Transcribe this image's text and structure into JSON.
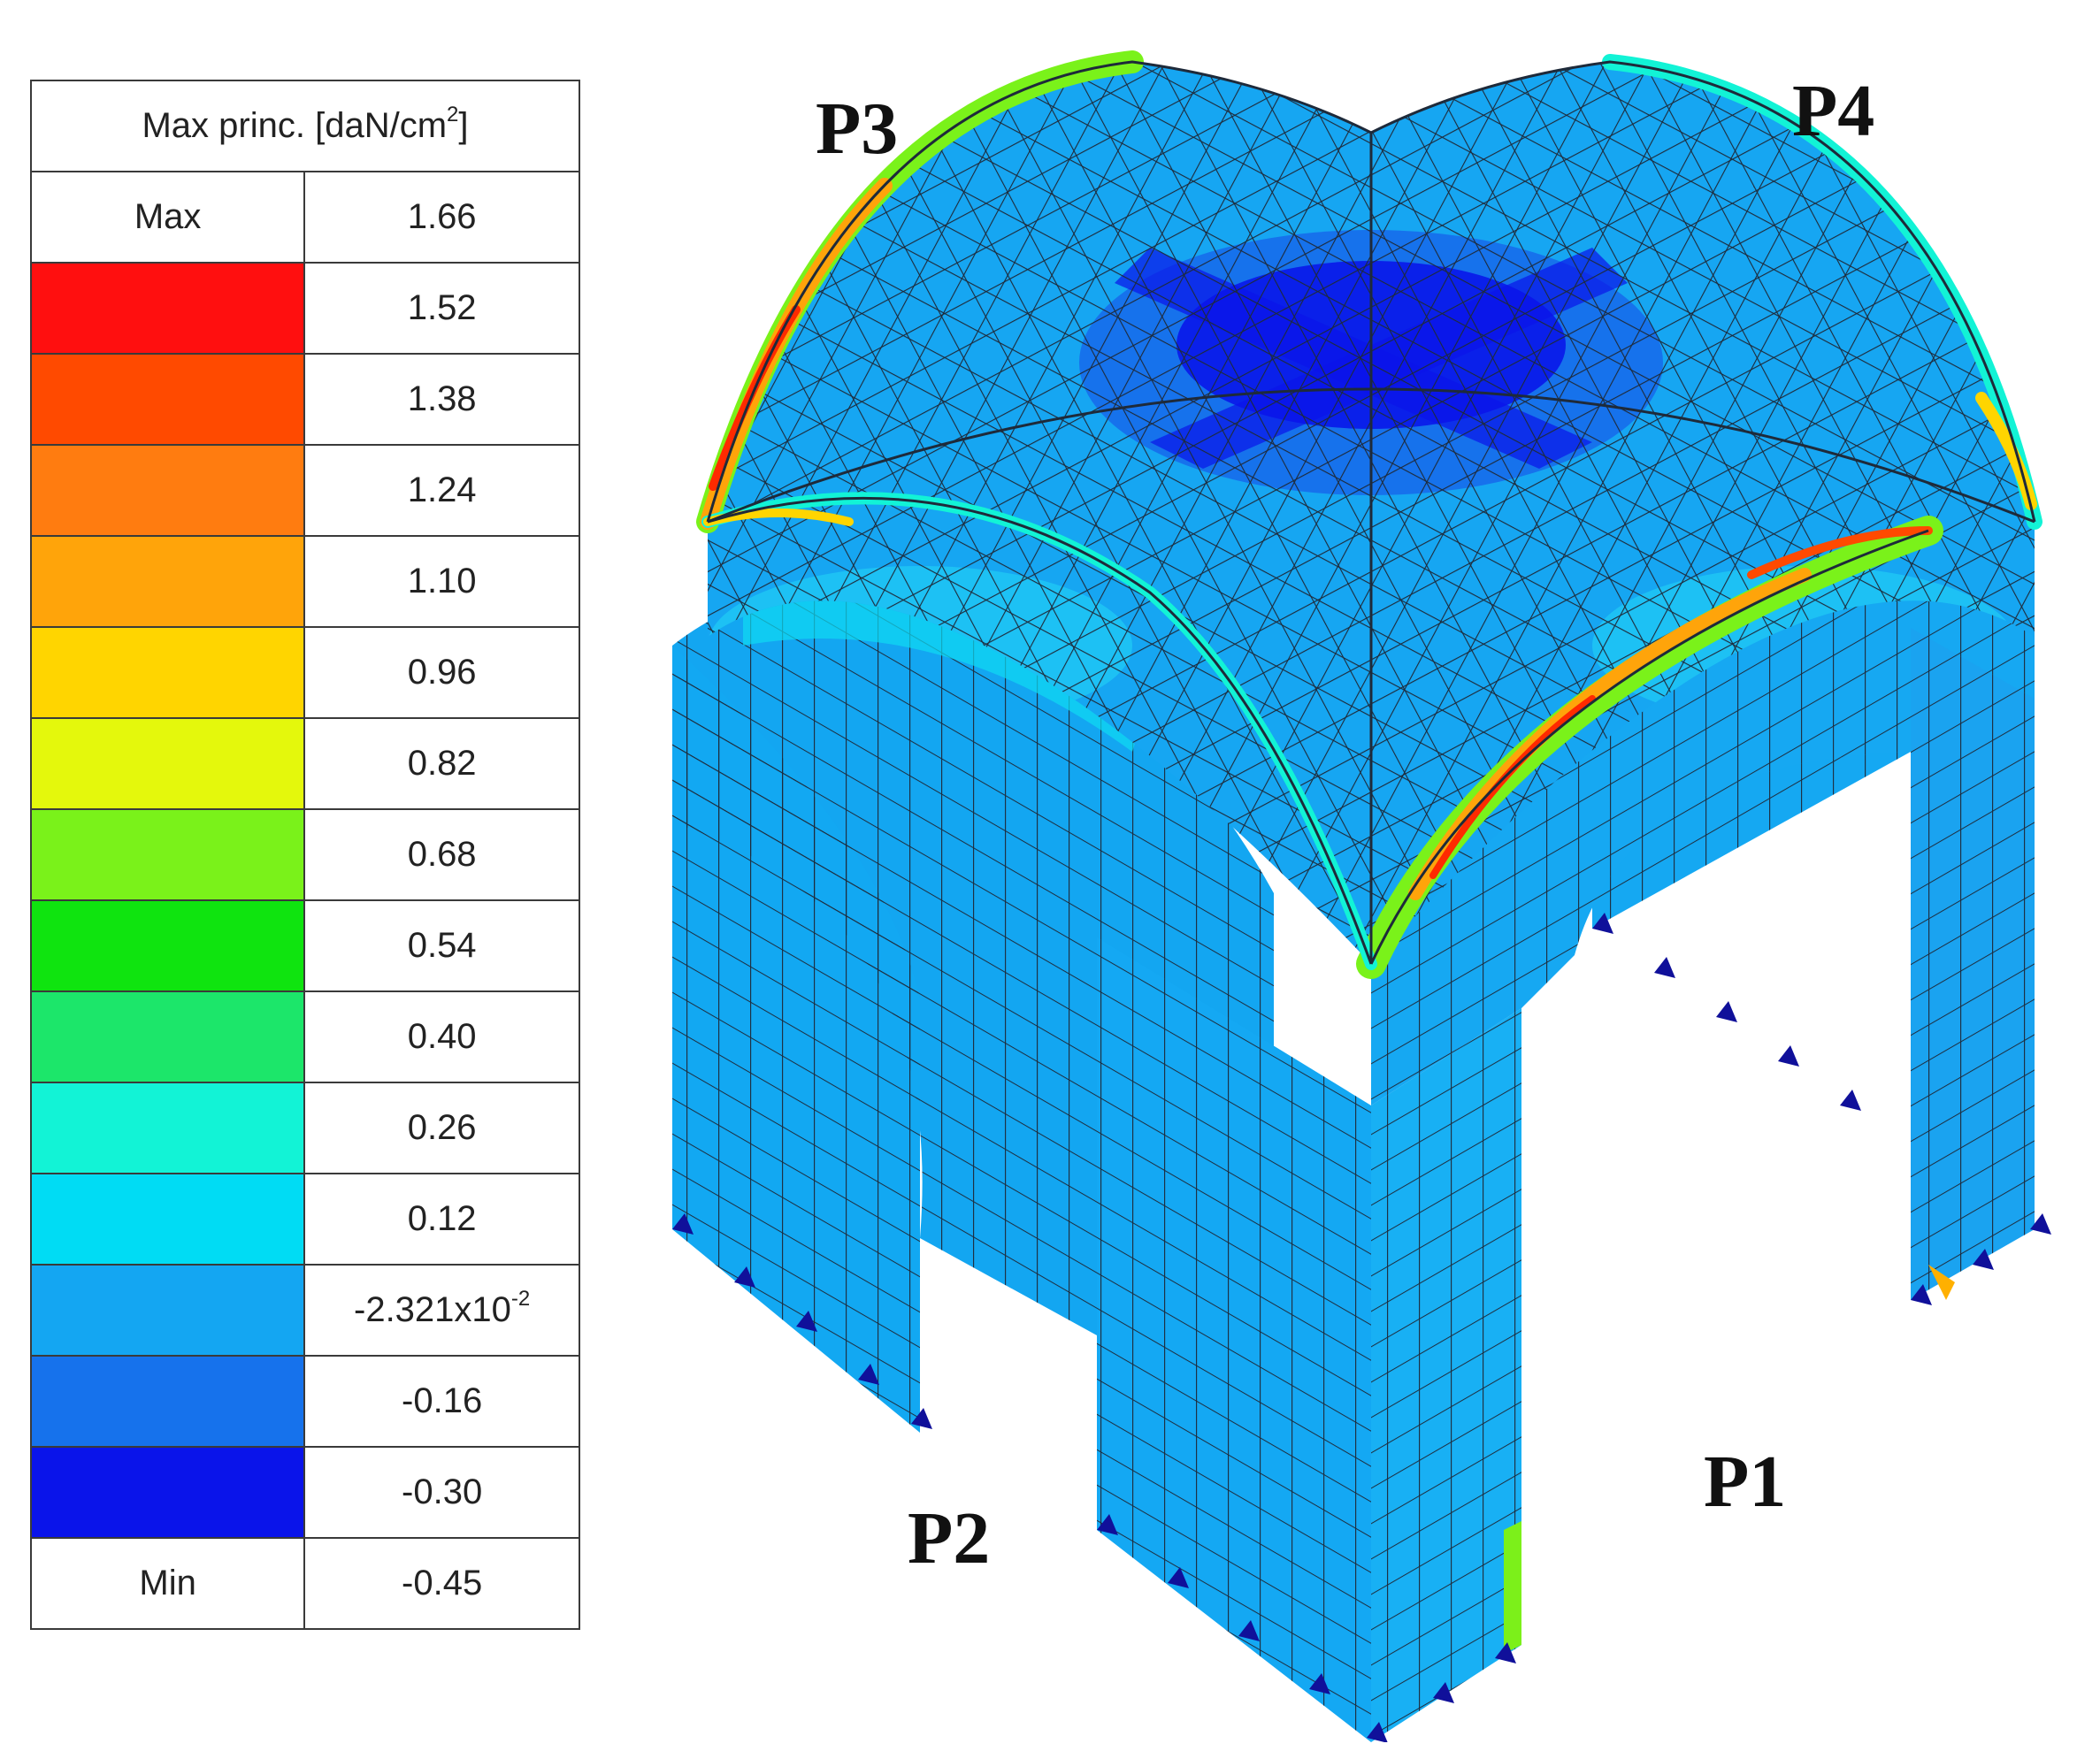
{
  "legend": {
    "title": "Max princ. [daN/cm",
    "title_sup": "2",
    "title_close": "]",
    "max_label": "Max",
    "max_value": "1.66",
    "min_label": "Min",
    "min_value": "-0.45",
    "bands": [
      {
        "value": "1.52",
        "color": "#ff0f0f"
      },
      {
        "value": "1.38",
        "color": "#ff4a00"
      },
      {
        "value": "1.24",
        "color": "#ff7c10"
      },
      {
        "value": "1.10",
        "color": "#ffa40a"
      },
      {
        "value": "0.96",
        "color": "#ffd500"
      },
      {
        "value": "0.82",
        "color": "#e4f80c"
      },
      {
        "value": "0.68",
        "color": "#7af21a"
      },
      {
        "value": "0.54",
        "color": "#0fe40f"
      },
      {
        "value": "0.40",
        "color": "#1ce66a"
      },
      {
        "value": "0.26",
        "color": "#12f3d6"
      },
      {
        "value": "0.12",
        "color": "#00dcf4"
      },
      {
        "value": "-2.321x10",
        "sup": "-2",
        "color": "#14a6f2"
      },
      {
        "value": "-0.16",
        "color": "#1672ec"
      },
      {
        "value": "-0.30",
        "color": "#0a14ea"
      }
    ]
  },
  "labels": {
    "p1": "P1",
    "p2": "P2",
    "p3": "P3",
    "p4": "P4"
  }
}
